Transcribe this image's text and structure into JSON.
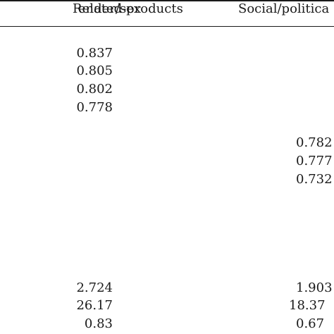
{
  "table": {
    "headers": [
      "ender/sex",
      "Related-products",
      "Social/politica"
    ],
    "blocks": {
      "related_products": [
        "0.837",
        "0.805",
        "0.802",
        "0.778"
      ],
      "social_political": [
        "0.782",
        "0.777",
        "0.732"
      ],
      "summary_col_a": [
        "2.724",
        "26.17",
        "0.83"
      ],
      "summary_col_b": [
        "1.903",
        "18.37",
        "0.67"
      ]
    }
  }
}
